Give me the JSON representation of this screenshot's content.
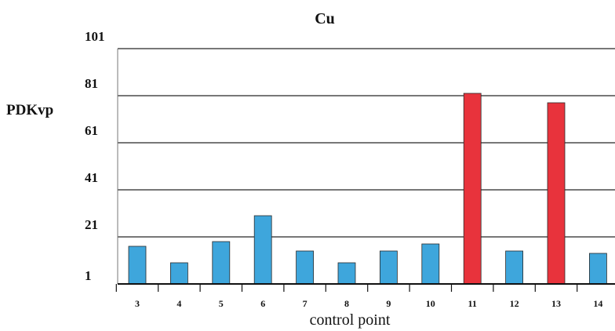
{
  "chart_data": {
    "type": "bar",
    "title": "Cu",
    "ylabel": "PDKvp",
    "xlabel": "control point",
    "ylim": [
      1,
      101
    ],
    "yticks": [
      "1",
      "21",
      "41",
      "61",
      "81",
      "101"
    ],
    "categories": [
      "3",
      "4",
      "5",
      "6",
      "7",
      "8",
      "9",
      "10",
      "11",
      "12",
      "13",
      "14"
    ],
    "values": [
      17,
      10,
      19,
      30,
      15,
      10,
      15,
      18,
      82,
      15,
      78,
      14
    ],
    "colors": [
      "#3ea6dc",
      "#3ea6dc",
      "#3ea6dc",
      "#3ea6dc",
      "#3ea6dc",
      "#3ea6dc",
      "#3ea6dc",
      "#3ea6dc",
      "#e8333c",
      "#3ea6dc",
      "#e8333c",
      "#3ea6dc"
    ],
    "grid": true,
    "legend": "none"
  }
}
